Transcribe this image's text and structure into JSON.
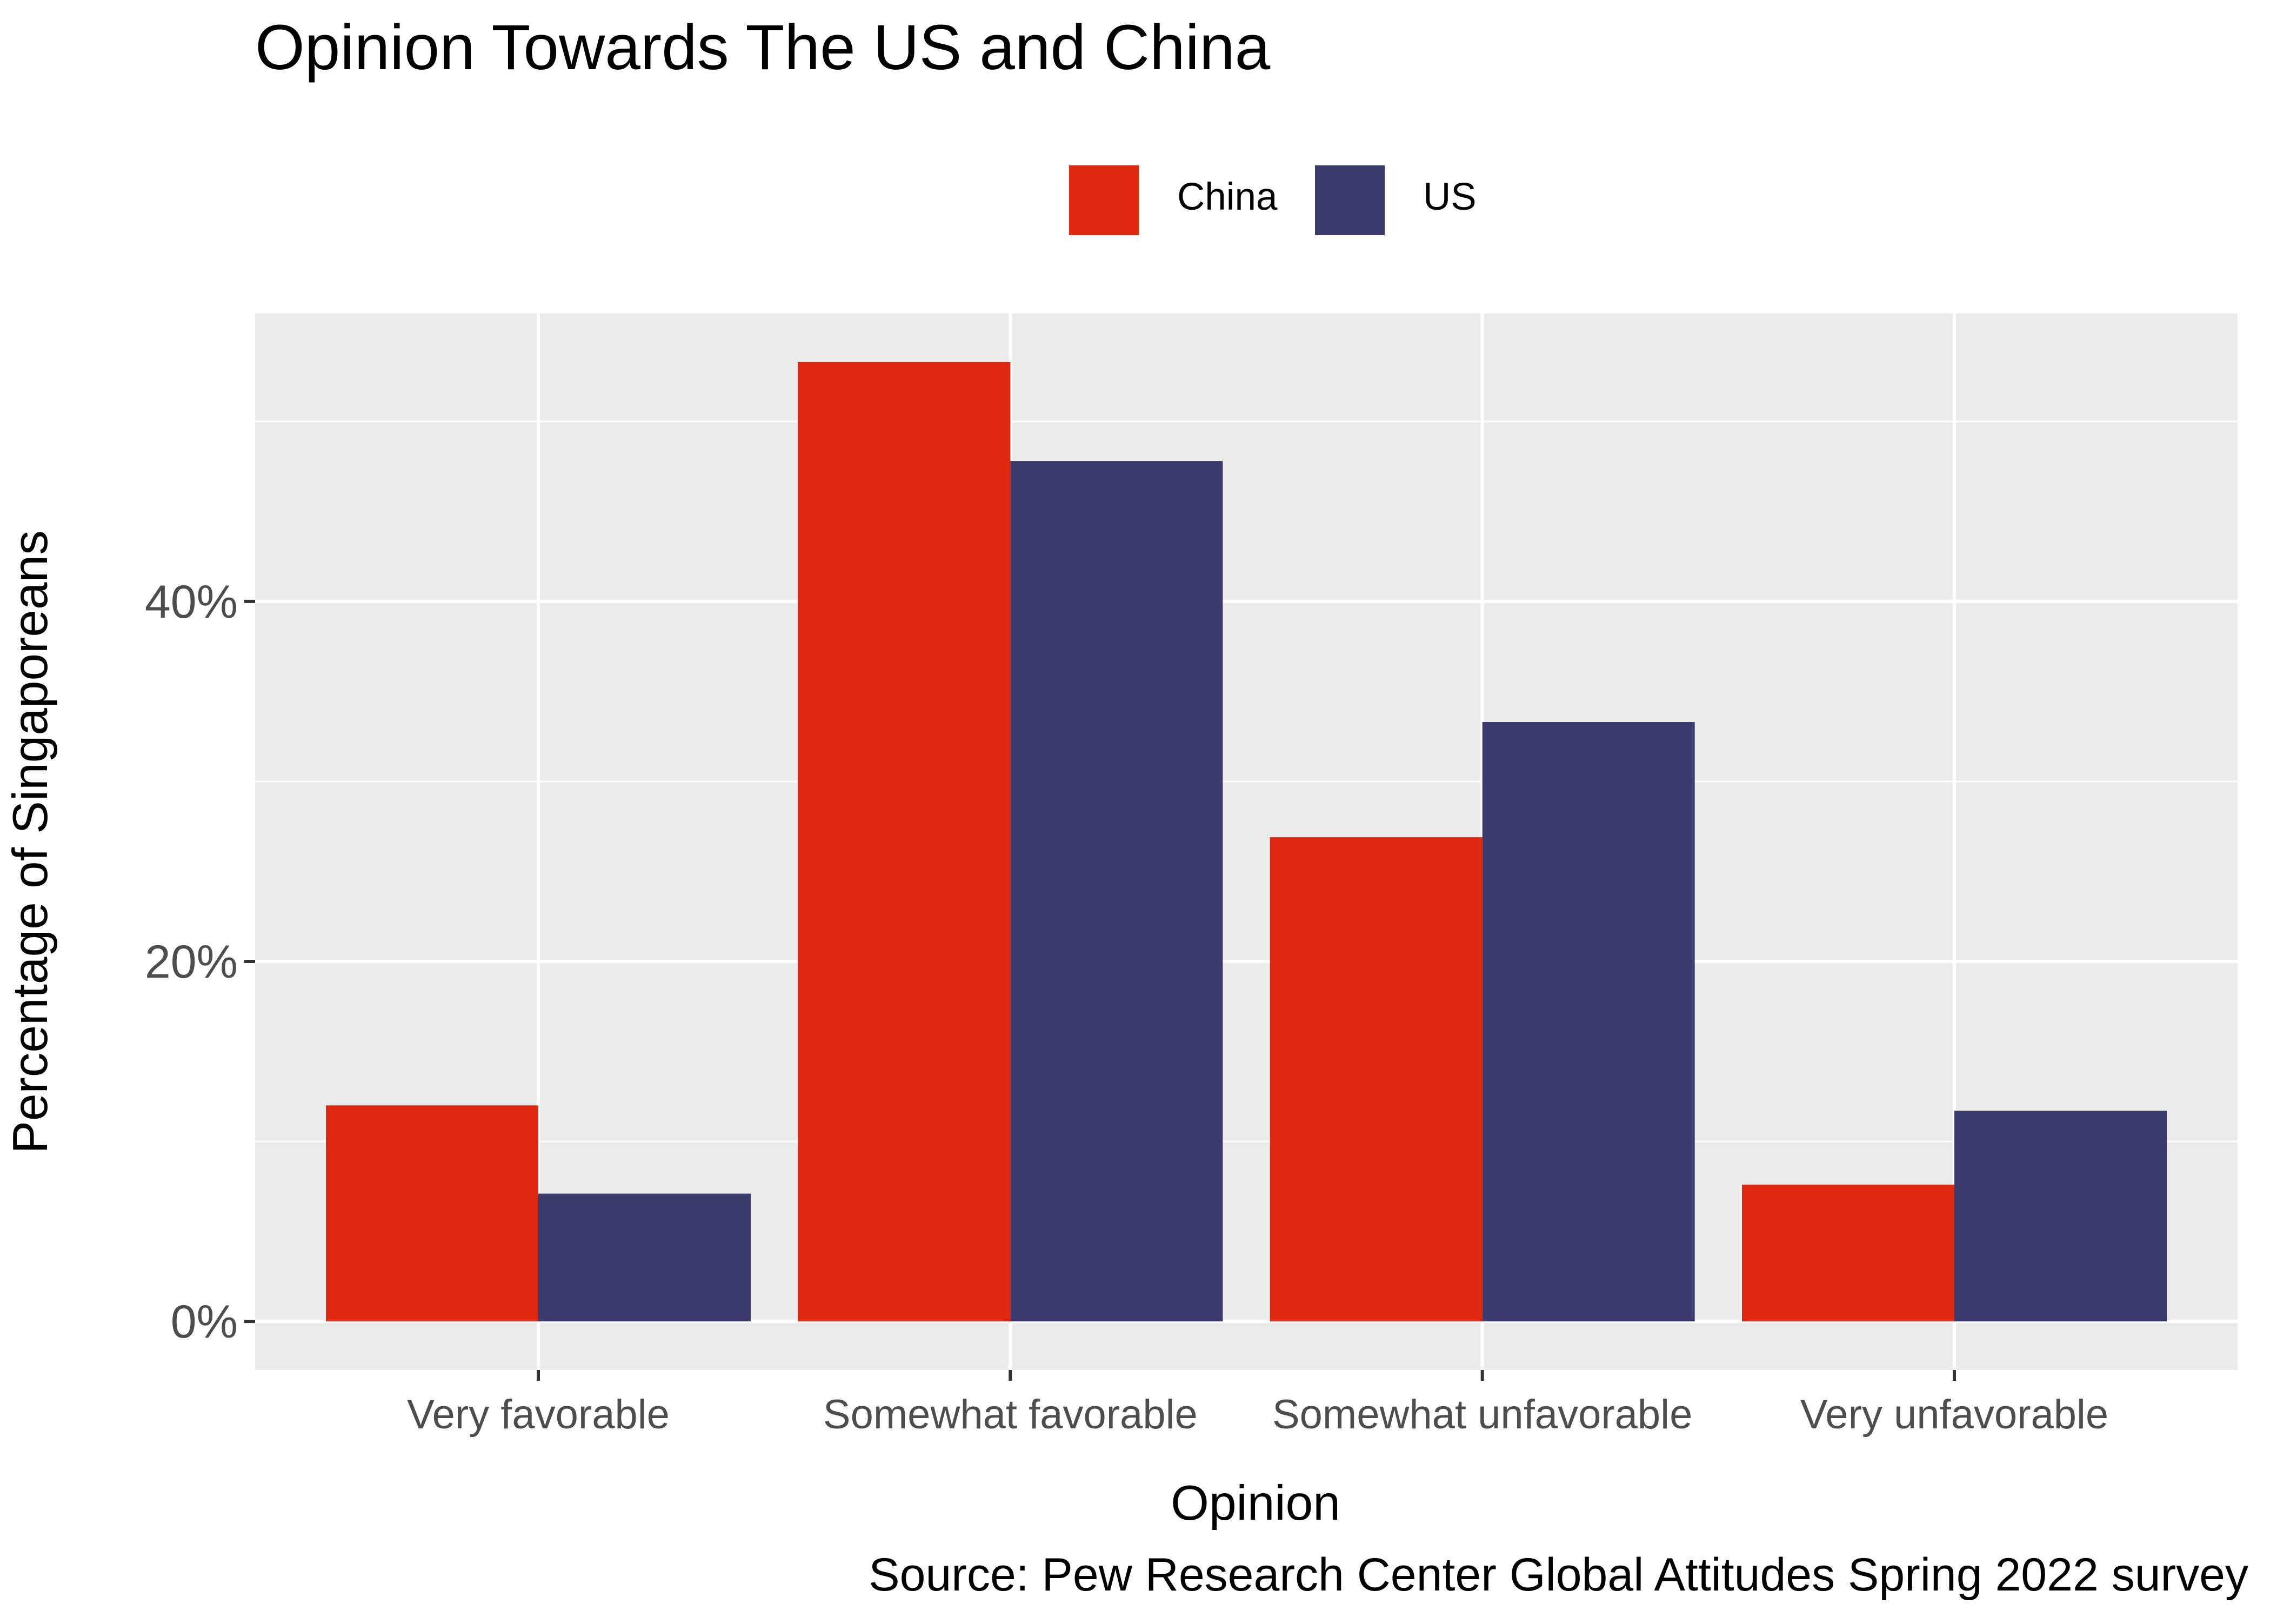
{
  "chart_data": {
    "type": "bar",
    "title": "Opinion Towards The US and China",
    "xlabel": "Opinion",
    "ylabel": "Percentage of Singaporeans",
    "caption": "Source: Pew Research Center Global Attitudes Spring 2022 survey",
    "categories": [
      "Very favorable",
      "Somewhat favorable",
      "Somewhat unfavorable",
      "Very unfavorable"
    ],
    "series": [
      {
        "name": "China",
        "color": "#DE2910",
        "values": [
          12.0,
          53.3,
          26.9,
          7.6
        ]
      },
      {
        "name": "US",
        "color": "#3C3B6E",
        "values": [
          7.1,
          47.8,
          33.3,
          11.7
        ]
      }
    ],
    "y_ticks": [
      0,
      20,
      40
    ],
    "y_tick_labels": [
      "0%",
      "20%",
      "40%"
    ],
    "ylim": [
      -2.7,
      56
    ],
    "grid": true,
    "legend_position": "top",
    "panel_background": "#EBEBEB"
  }
}
